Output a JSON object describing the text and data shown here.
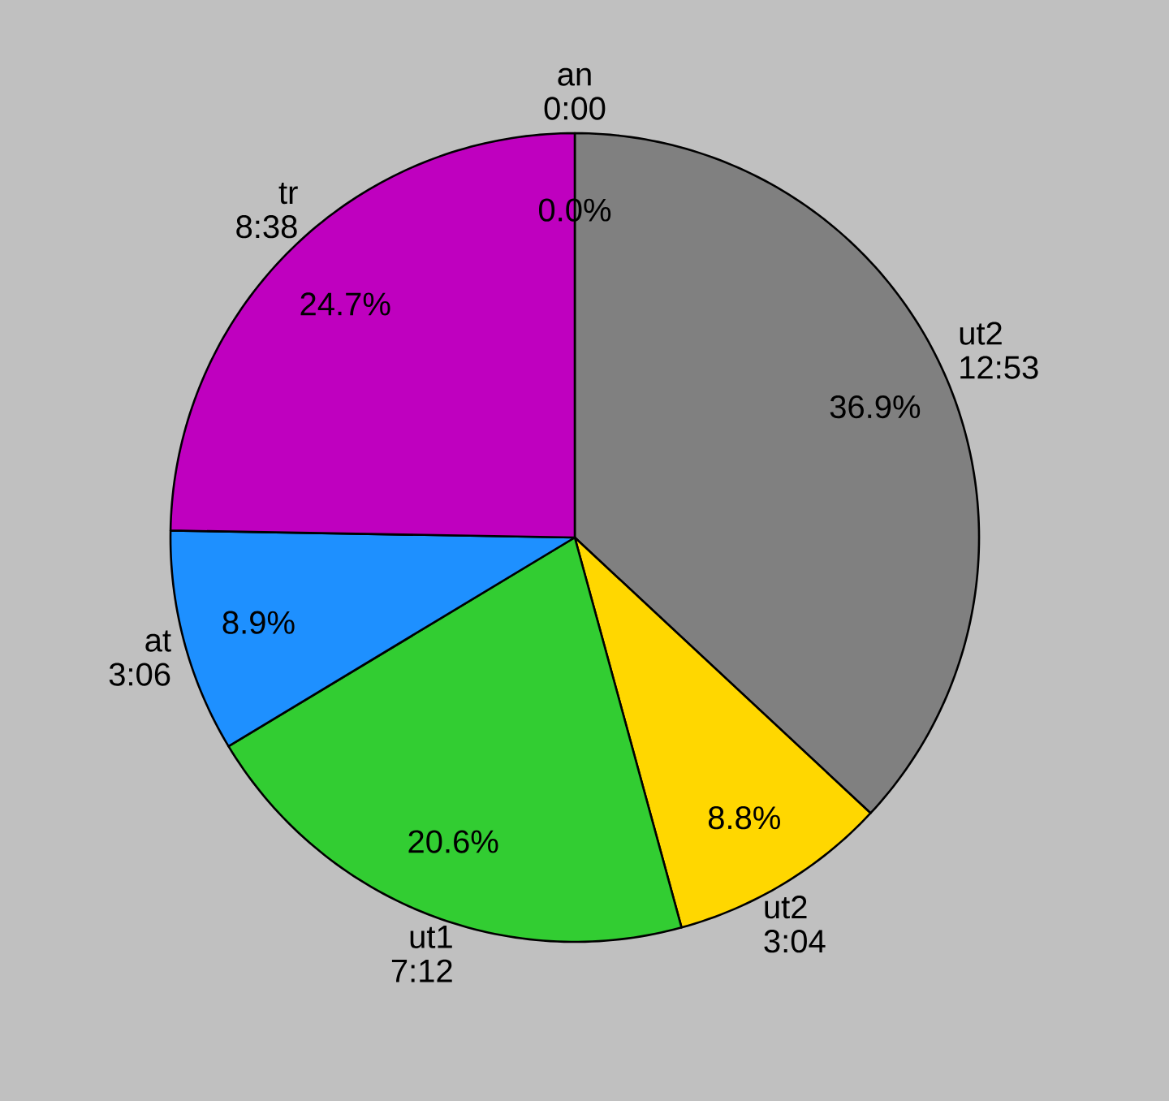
{
  "chart_data": {
    "type": "pie",
    "categories": [
      "an 0:00",
      "ut2 12:53",
      "ut2 3:04",
      "ut1 7:12",
      "at 3:06",
      "tr 8:38"
    ],
    "values": [
      0.0,
      36.9,
      8.8,
      20.6,
      8.9,
      24.7
    ],
    "value_labels": [
      "0.0%",
      "36.9%",
      "8.8%",
      "20.6%",
      "8.9%",
      "24.7%"
    ],
    "colors": [
      null,
      "#808080",
      "#ffd700",
      "#32cd32",
      "#1e90ff",
      "#bf00bf"
    ]
  }
}
